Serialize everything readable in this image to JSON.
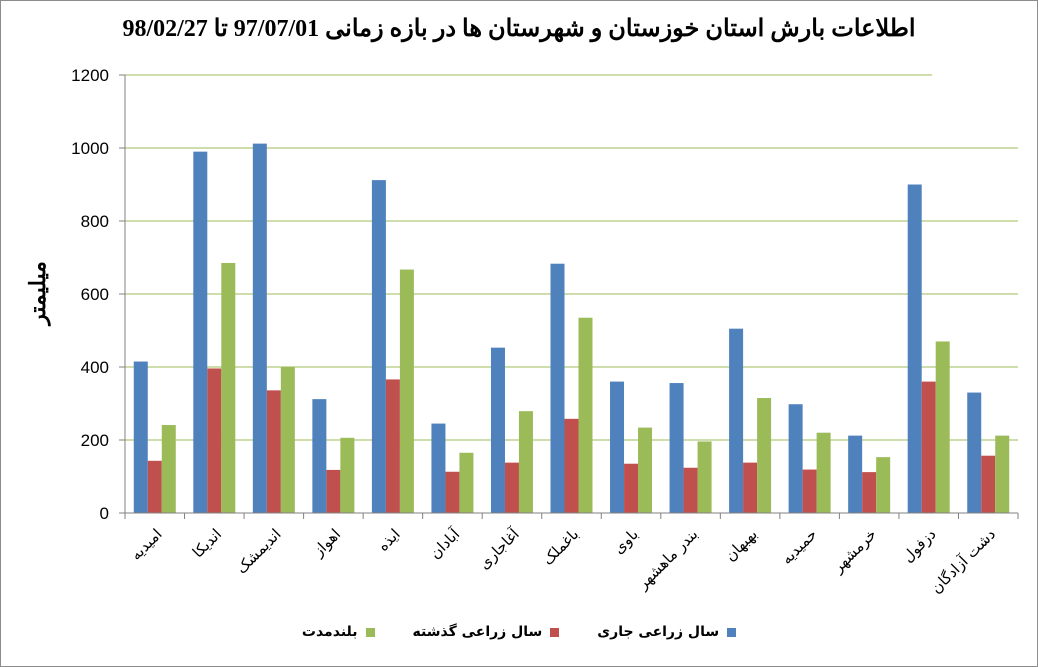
{
  "chart_data": {
    "type": "bar",
    "title": "اطلاعات بارش استان خوزستان و شهرستان ها در بازه زمانی 97/07/01 تا 98/02/27",
    "ylabel": "میلیمتر",
    "xlabel": "",
    "ylim": [
      0,
      1200
    ],
    "yticks": [
      0,
      200,
      400,
      600,
      800,
      1000,
      1200
    ],
    "grid": true,
    "legend_position": "bottom",
    "categories": [
      "امیدیه",
      "اندیکا",
      "اندیمشک",
      "اهواز",
      "ایذه",
      "آبادان",
      "آغاجاری",
      "باغملک",
      "باوی",
      "بندر ماهشهر",
      "بهبهان",
      "حمیدیه",
      "خرمشهر",
      "دزفول",
      "دشت آزادگان"
    ],
    "series": [
      {
        "name": "سال زراعی جاری",
        "color": "#4f81bd",
        "values": [
          415,
          990,
          1012,
          312,
          912,
          245,
          453,
          683,
          360,
          356,
          505,
          298,
          212,
          900,
          330
        ]
      },
      {
        "name": "سال زراعی گذشته",
        "color": "#c0504d",
        "values": [
          143,
          396,
          336,
          118,
          366,
          113,
          138,
          258,
          135,
          124,
          138,
          119,
          112,
          360,
          157
        ]
      },
      {
        "name": "بلندمدت",
        "color": "#9bbb59",
        "values": [
          241,
          685,
          401,
          206,
          667,
          165,
          279,
          535,
          234,
          196,
          315,
          220,
          153,
          470,
          212
        ]
      }
    ]
  }
}
